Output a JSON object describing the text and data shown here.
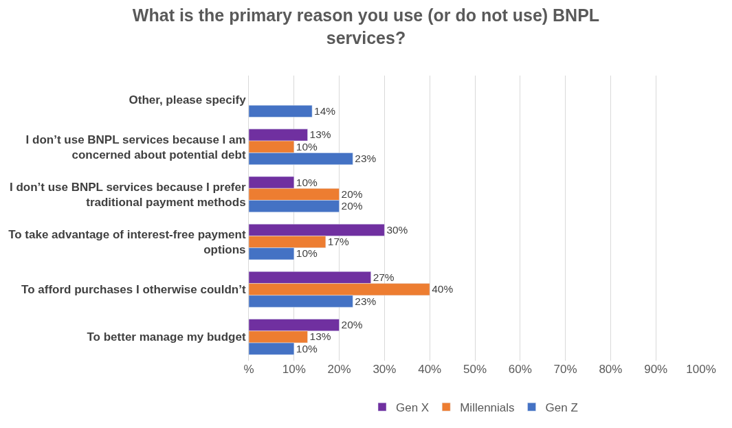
{
  "chart_data": {
    "type": "bar",
    "orientation": "horizontal",
    "title": "What is the primary reason you use (or do not use) BNPL services?",
    "categories": [
      "Other, please specify",
      "I don’t use BNPL services because I am concerned about potential debt",
      "I don’t use BNPL services because I prefer traditional payment methods",
      "To take advantage of interest-free payment options",
      "To afford purchases I otherwise couldn’t",
      "To better manage my budget"
    ],
    "series": [
      {
        "name": "Gen X",
        "color": "#7030a0",
        "values": [
          null,
          13,
          10,
          30,
          27,
          20
        ],
        "value_labels": [
          null,
          "13%",
          "10%",
          "30%",
          "27%",
          "20%"
        ]
      },
      {
        "name": "Millennials",
        "color": "#ed7d31",
        "values": [
          null,
          10,
          20,
          17,
          40,
          13
        ],
        "value_labels": [
          null,
          "10%",
          "20%",
          "17%",
          "40%",
          "13%"
        ]
      },
      {
        "name": "Gen Z",
        "color": "#4472c4",
        "values": [
          14,
          23,
          20,
          10,
          23,
          10
        ],
        "value_labels": [
          "14%",
          "23%",
          "20%",
          "10%",
          "23%",
          "10%"
        ]
      }
    ],
    "xlim": [
      0,
      100
    ],
    "xticks": [
      {
        "value": 0,
        "label": "%"
      },
      {
        "value": 10,
        "label": "10%"
      },
      {
        "value": 20,
        "label": "20%"
      },
      {
        "value": 30,
        "label": "30%"
      },
      {
        "value": 40,
        "label": "40%"
      },
      {
        "value": 50,
        "label": "50%"
      },
      {
        "value": 60,
        "label": "60%"
      },
      {
        "value": 70,
        "label": "70%"
      },
      {
        "value": 80,
        "label": "80%"
      },
      {
        "value": 90,
        "label": "90%"
      },
      {
        "value": 100,
        "label": "100%"
      }
    ],
    "grid": "x",
    "legend": "bottom"
  }
}
